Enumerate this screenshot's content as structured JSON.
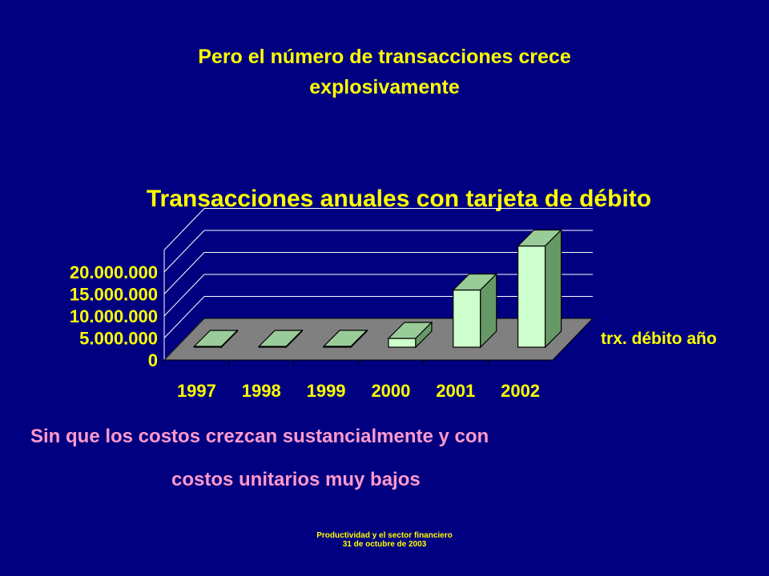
{
  "slide": {
    "title_line1": "Pero el número de transacciones crece",
    "title_line2": "explosivamente",
    "body_line1": "Sin que los costos crezcan sustancialmente  y con",
    "body_line2": "costos unitarios muy bajos",
    "footer_line1": "Productividad y el sector financiero",
    "footer_line2": "31 de octubre de 2003"
  },
  "colors": {
    "background": "#000080",
    "title": "#FFFF00",
    "body_text": "#FF99CC",
    "bar_face": "#CCFFCC",
    "bar_top": "#99CC99",
    "bar_side": "#669966",
    "floor": "#808080",
    "gridline": "#FFFFFF"
  },
  "chart_data": {
    "type": "bar",
    "title": "Transacciones anuales con tarjeta de débito",
    "categories": [
      "1997",
      "1998",
      "1999",
      "2000",
      "2001",
      "2002"
    ],
    "series": [
      {
        "name": "trx. débito año",
        "values": [
          0,
          0,
          200000,
          2000000,
          13000000,
          23000000
        ]
      }
    ],
    "yticks": [
      "0",
      "5.000.000",
      "10.000.000",
      "15.000.000",
      "20.000.000"
    ],
    "ylim": [
      0,
      25000000
    ],
    "three_d": true,
    "grid": true,
    "legend_position": "right"
  }
}
